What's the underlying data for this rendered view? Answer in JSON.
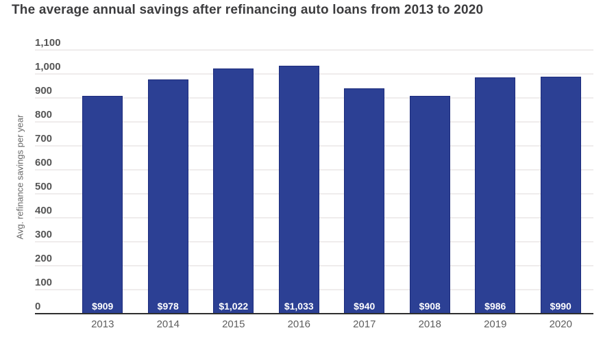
{
  "chart_data": {
    "type": "bar",
    "title": "The average annual savings after refinancing auto loans from 2013 to 2020",
    "ylabel": "Avg. refinance savings per year",
    "xlabel": "",
    "categories": [
      "2013",
      "2014",
      "2015",
      "2016",
      "2017",
      "2018",
      "2019",
      "2020"
    ],
    "values": [
      909,
      978,
      1022,
      1033,
      940,
      908,
      986,
      990
    ],
    "bar_labels": [
      "$909",
      "$978",
      "$1,022",
      "$1,033",
      "$940",
      "$908",
      "$986",
      "$990"
    ],
    "ylim": [
      0,
      1100
    ],
    "ytick_step": 100,
    "ytick_labels": [
      "0",
      "100",
      "200",
      "300",
      "400",
      "500",
      "600",
      "700",
      "800",
      "900",
      "1,000",
      "1,100"
    ],
    "grid": true,
    "legend": "none",
    "colors": {
      "bar_fill": "#2c4094",
      "bar_border": "#1c2b7c",
      "gridline": "#efecec",
      "baseline": "#2e2e2e",
      "title_text": "#3c3c3e",
      "axis_tick_text": "#555555",
      "value_label_text": "#ffffff",
      "background": "#ffffff"
    }
  }
}
